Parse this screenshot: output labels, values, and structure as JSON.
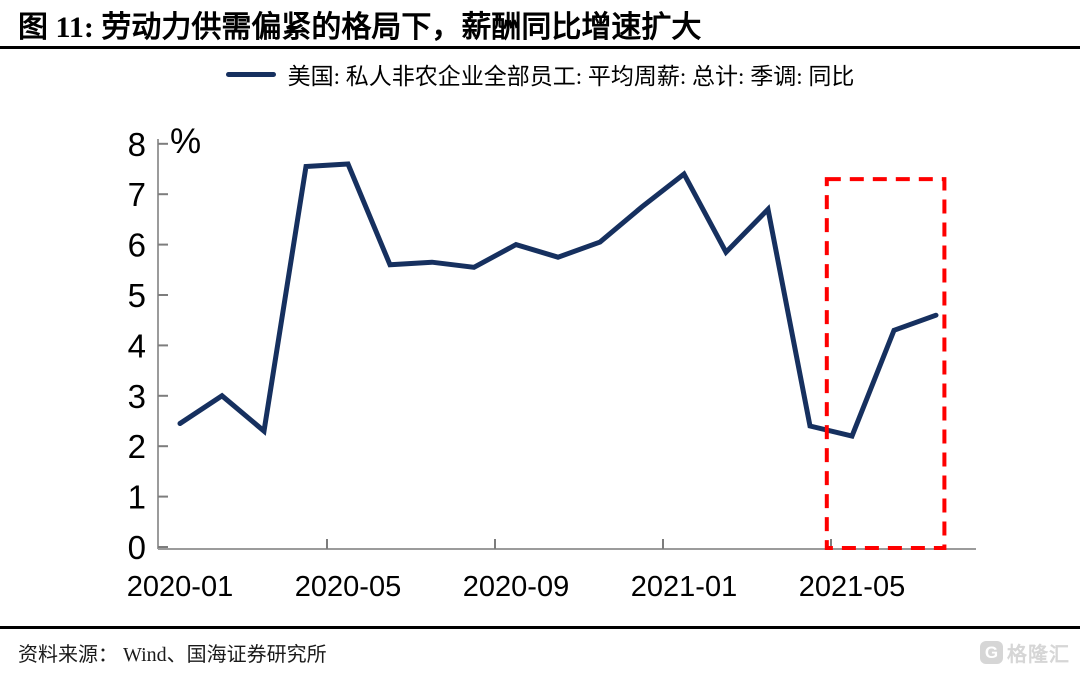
{
  "figure": {
    "title": "图 11:  劳动力供需偏紧的格局下，薪酬同比增速扩大",
    "source": "资料来源： Wind、国海证券研究所",
    "watermark": {
      "icon": "G",
      "text": "格隆汇"
    }
  },
  "chart_data": {
    "type": "line",
    "legend": [
      "美国: 私人非农企业全部员工: 平均周薪: 总计: 季调: 同比"
    ],
    "legend_position": "top",
    "unit_label": "%",
    "categories": [
      "2020-01",
      "2020-02",
      "2020-03",
      "2020-04",
      "2020-05",
      "2020-06",
      "2020-07",
      "2020-08",
      "2020-09",
      "2020-10",
      "2020-11",
      "2020-12",
      "2021-01",
      "2021-02",
      "2021-03",
      "2021-04",
      "2021-05",
      "2021-06",
      "2021-07"
    ],
    "values": [
      2.45,
      3.0,
      2.3,
      7.55,
      7.6,
      5.6,
      5.65,
      5.55,
      6.0,
      5.75,
      6.05,
      6.75,
      7.4,
      5.85,
      6.7,
      2.4,
      2.2,
      4.3,
      4.6
    ],
    "x_tick_labels": [
      "2020-01",
      "2020-05",
      "2020-09",
      "2021-01",
      "2021-05"
    ],
    "ylim": [
      0,
      8
    ],
    "y_tick_step": 1,
    "grid": false,
    "line_color": "#16305f",
    "axis_color": "#9b9b9b",
    "tick_color": "#7d7d7d",
    "highlight_box": {
      "from": "2021-04",
      "to": "2021-07",
      "top": 7.3,
      "color": "#fe0000",
      "style": "dashed"
    }
  }
}
